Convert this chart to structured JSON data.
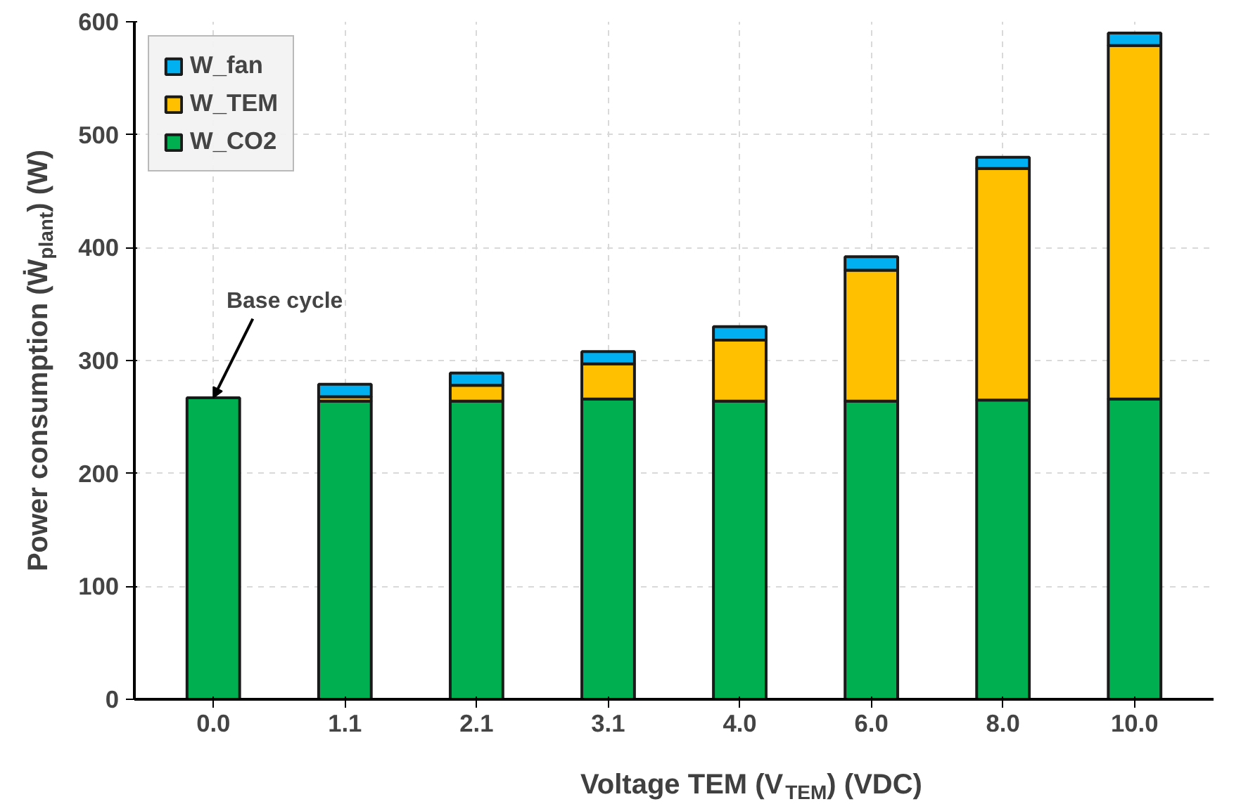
{
  "chart_data": {
    "type": "bar",
    "stacked": true,
    "xlabel": "Voltage TEM (V$_{TEM}$) (VDC)",
    "ylabel": "Power consumption (Ẇ$_{plant}$) (W)",
    "categories": [
      "0.0",
      "1.1",
      "2.1",
      "3.1",
      "4.0",
      "6.0",
      "8.0",
      "10.0"
    ],
    "series": [
      {
        "name": "W_CO2",
        "color": "#00b050",
        "values": [
          267,
          264,
          264,
          266,
          264,
          264,
          265,
          266
        ]
      },
      {
        "name": "W_TEM",
        "color": "#ffc000",
        "values": [
          null,
          4,
          14,
          31,
          54,
          116,
          205,
          313
        ]
      },
      {
        "name": "W_fan",
        "color": "#00b0f0",
        "values": [
          null,
          11,
          11,
          11,
          12,
          12,
          10,
          11
        ]
      }
    ],
    "ylim": [
      0,
      600
    ],
    "yticks": [
      0,
      100,
      200,
      300,
      400,
      500,
      600
    ],
    "grid": true,
    "legend": "top left",
    "annotations": [
      {
        "text": "Base cycle",
        "x": "0.0",
        "y": 267
      }
    ]
  }
}
